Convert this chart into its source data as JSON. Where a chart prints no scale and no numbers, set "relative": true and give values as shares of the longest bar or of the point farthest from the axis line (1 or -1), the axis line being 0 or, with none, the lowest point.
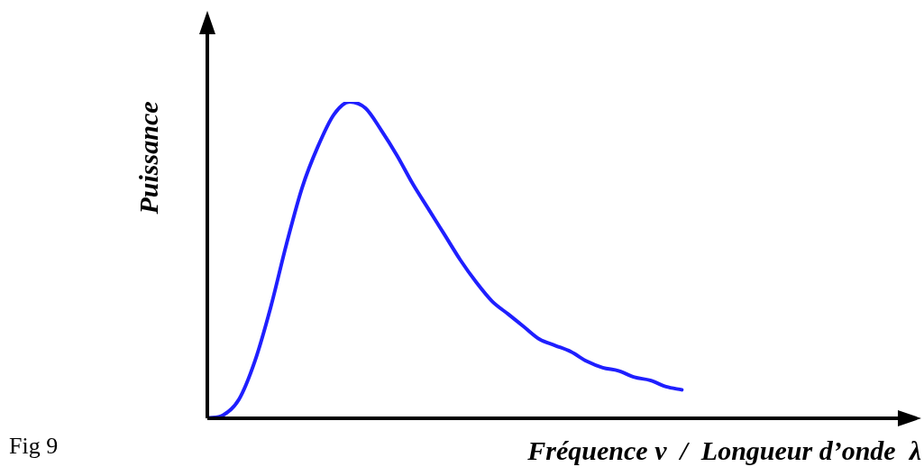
{
  "chart_data": {
    "type": "line",
    "relative": true,
    "xlabel": "Fréquence ν  /  Longueur d’onde  λ",
    "ylabel": "Puissance",
    "annotations": [
      "Fig 9"
    ],
    "color": "#1f1fff",
    "marker": "none",
    "line_style": "solid",
    "grid": false,
    "legend": false,
    "categories": [
      null,
      null,
      null,
      null,
      null,
      null,
      null,
      null,
      null,
      null,
      null,
      null,
      null,
      null,
      null,
      null,
      null,
      null,
      null,
      null,
      null,
      null,
      null,
      null,
      null,
      null,
      null,
      null,
      null,
      null,
      null,
      null,
      null,
      null,
      null,
      null,
      null,
      null,
      null,
      null,
      null,
      null,
      null,
      null,
      null
    ],
    "values": [
      0,
      0.01,
      0.06,
      0.18,
      0.35,
      0.55,
      0.73,
      0.86,
      0.96,
      1,
      0.98,
      0.91,
      0.83,
      0.74,
      0.66,
      0.58,
      0.5,
      0.43,
      0.37,
      0.33,
      0.29,
      0.25,
      0.23,
      0.21,
      0.18,
      0.16,
      0.15,
      0.13,
      0.12,
      0.1,
      0.09,
      null,
      null,
      null,
      null,
      null,
      null,
      null,
      null,
      null,
      null,
      null,
      null,
      null,
      null
    ]
  }
}
